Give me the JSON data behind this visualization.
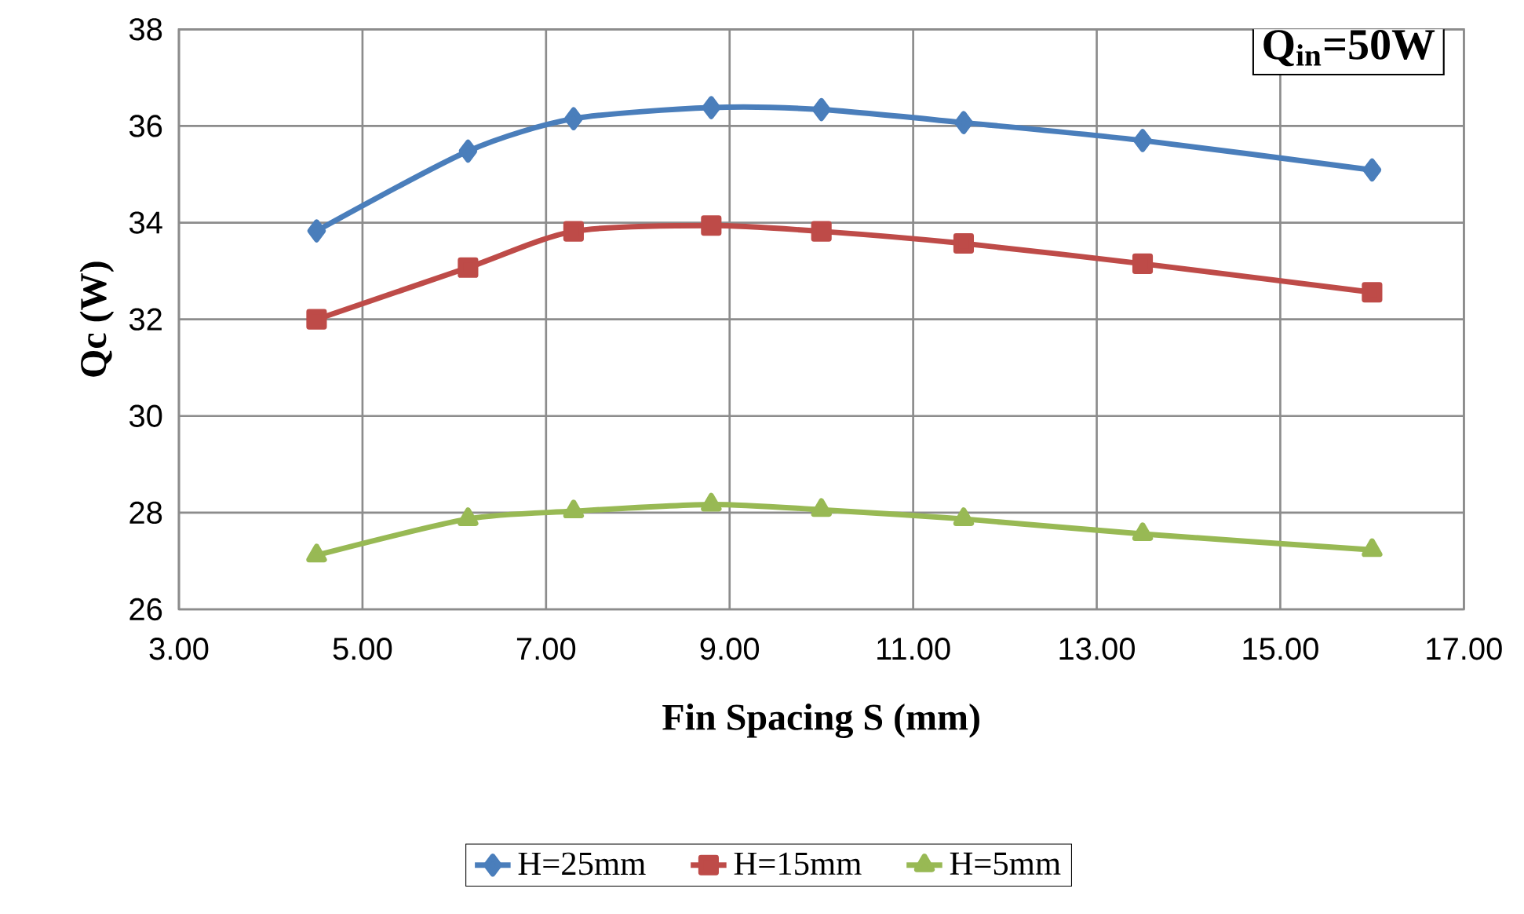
{
  "chart_data": {
    "type": "line",
    "xlabel": "Fin Spacing S (mm)",
    "ylabel": "Qc (W)",
    "annotations": [
      "Q$_{in}$=50W"
    ],
    "x": [
      4.5,
      6.15,
      7.3,
      8.8,
      10.0,
      11.55,
      13.5,
      16.0
    ],
    "series": [
      {
        "name": "H=25mm",
        "color": "#4a7ebb",
        "marker": "diamond",
        "values": [
          33.83,
          35.48,
          36.15,
          36.38,
          36.34,
          36.07,
          35.7,
          35.09
        ]
      },
      {
        "name": "H=15mm",
        "color": "#be4b48",
        "marker": "square",
        "values": [
          32.0,
          33.07,
          33.82,
          33.94,
          33.82,
          33.57,
          33.15,
          32.56
        ]
      },
      {
        "name": "H=5mm",
        "color": "#98b954",
        "marker": "triangle",
        "values": [
          27.12,
          27.87,
          28.03,
          28.17,
          28.06,
          27.87,
          27.56,
          27.23
        ]
      }
    ],
    "xlim": [
      3,
      17
    ],
    "xticks": [
      {
        "value": 3,
        "label": "3.00"
      },
      {
        "value": 5,
        "label": "5.00"
      },
      {
        "value": 7,
        "label": "7.00"
      },
      {
        "value": 9,
        "label": "9.00"
      },
      {
        "value": 11,
        "label": "11.00"
      },
      {
        "value": 13,
        "label": "13.00"
      },
      {
        "value": 15,
        "label": "15.00"
      },
      {
        "value": 17,
        "label": "17.00"
      }
    ],
    "ylim": [
      26,
      38
    ],
    "yticks": [
      26,
      28,
      30,
      32,
      34,
      36,
      38
    ],
    "grid": true,
    "legend": "bottom",
    "line_style": "solid"
  }
}
